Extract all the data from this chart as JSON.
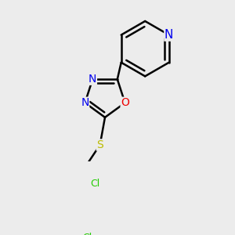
{
  "bg_color": "#ececec",
  "bond_color": "#000000",
  "bond_width": 1.8,
  "atom_colors": {
    "N": "#0000ee",
    "O": "#ee0000",
    "S": "#bbbb00",
    "Cl": "#22cc00",
    "C": "#000000"
  },
  "font_size": 10,
  "font_size_cl": 9
}
